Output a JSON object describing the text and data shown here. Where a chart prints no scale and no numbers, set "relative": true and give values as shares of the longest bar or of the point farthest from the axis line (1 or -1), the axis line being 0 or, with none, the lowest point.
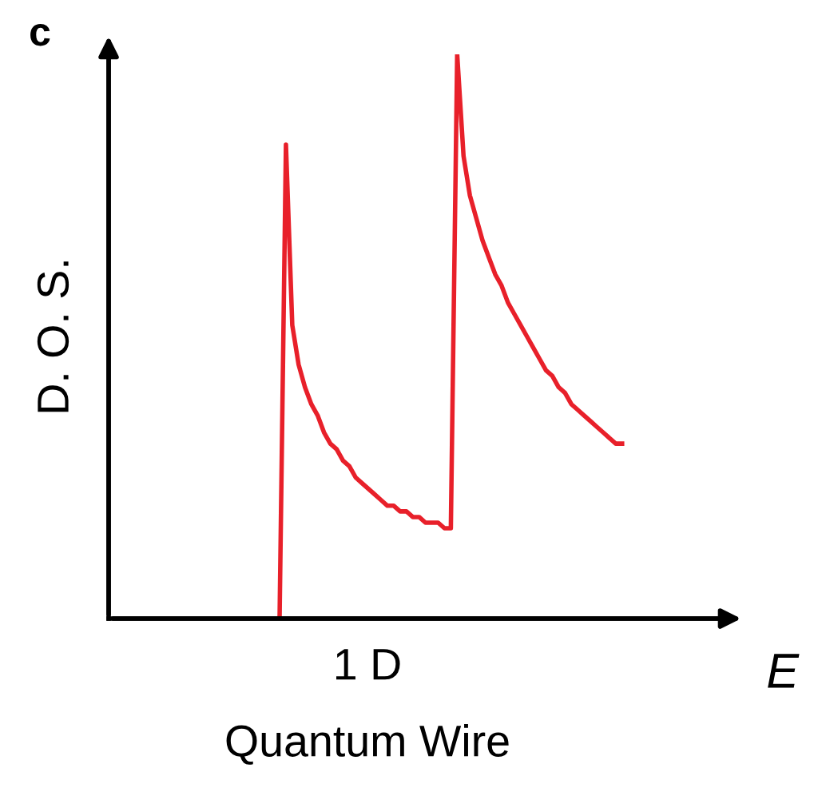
{
  "chart_data": {
    "type": "line",
    "title": "c",
    "xlabel": "E",
    "ylabel": "D. O. S.",
    "relative": true,
    "legend": false,
    "marker": "none",
    "line_style": "solid",
    "annotations": [
      "1 D",
      "Quantum Wire"
    ],
    "categories": [
      null,
      null,
      null,
      null,
      null,
      null,
      null,
      null,
      null,
      null,
      null,
      null,
      null,
      null,
      null,
      null,
      null,
      null,
      null,
      null,
      null,
      null,
      null,
      null,
      null,
      null,
      null,
      null,
      null,
      null,
      null,
      null,
      null,
      null,
      null,
      null,
      null,
      null,
      null,
      null,
      null,
      null,
      null,
      null,
      null,
      null,
      null,
      null,
      null,
      null,
      null,
      null,
      null,
      null,
      null
    ],
    "series": [
      {
        "color": "#e8202a",
        "values": [
          0,
          0.84,
          0.52,
          0.45,
          0.41,
          0.38,
          0.36,
          0.33,
          0.31,
          0.3,
          0.28,
          0.27,
          0.25,
          0.24,
          0.23,
          0.22,
          0.21,
          0.2,
          0.2,
          0.19,
          0.19,
          0.18,
          0.18,
          0.17,
          0.17,
          0.17,
          0.16,
          0.16,
          1.0,
          0.82,
          0.75,
          0.71,
          0.67,
          0.64,
          0.61,
          0.59,
          0.56,
          0.54,
          0.52,
          0.5,
          0.48,
          0.46,
          0.44,
          0.43,
          0.41,
          0.4,
          0.38,
          0.37,
          0.36,
          0.35,
          0.34,
          0.33,
          0.32,
          0.31,
          0.31
        ]
      }
    ]
  }
}
